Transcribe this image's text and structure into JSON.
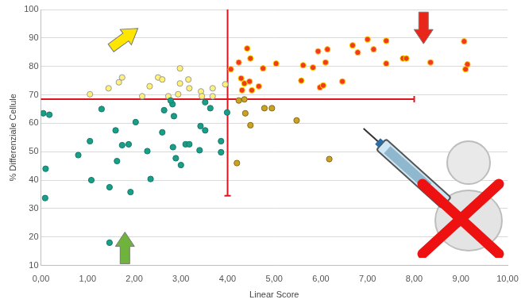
{
  "chart_data": {
    "type": "scatter",
    "x_label": "Linear Score",
    "y_label": "% Differenziale Cellule",
    "xlim": [
      0,
      10
    ],
    "xticks": [
      {
        "value": 0,
        "label": "0,00"
      },
      {
        "value": 1,
        "label": "1,00"
      },
      {
        "value": 2,
        "label": "2,00"
      },
      {
        "value": 3,
        "label": "3,00"
      },
      {
        "value": 4,
        "label": "4,00"
      },
      {
        "value": 5,
        "label": "5,00"
      },
      {
        "value": 6,
        "label": "6,00"
      },
      {
        "value": 7,
        "label": "7,00"
      },
      {
        "value": 8,
        "label": "8,00"
      },
      {
        "value": 9,
        "label": "9,00"
      },
      {
        "value": 10,
        "label": "10,00"
      }
    ],
    "ylim": [
      10,
      100
    ],
    "yticks": [
      10,
      20,
      30,
      40,
      50,
      60,
      70,
      80,
      90,
      100
    ],
    "grid": "y",
    "series": [
      {
        "color": "#1a9e87",
        "marker": "circle",
        "x": [
          0.05,
          0.18,
          0.1,
          0.09,
          0.8,
          1.05,
          1.08,
          1.3,
          1.47,
          1.6,
          1.47,
          1.63,
          1.74,
          1.88,
          1.92,
          2.03,
          2.28,
          2.35,
          2.6,
          2.64,
          2.82,
          2.85,
          2.83,
          2.89,
          3.0,
          3.1,
          3.18,
          3.4,
          3.42,
          3.52,
          3.52,
          3.63,
          3.86,
          3.86,
          3.99,
          2.78
        ],
        "values": [
          63.5,
          63,
          44,
          33.7,
          48.8,
          53.7,
          40,
          65,
          37.5,
          57.5,
          18,
          46.7,
          52.3,
          52.6,
          35.8,
          60.4,
          50.2,
          40.4,
          56.8,
          64.6,
          66.7,
          62.5,
          51.6,
          47.7,
          45.3,
          52.6,
          52.6,
          50.5,
          59,
          57.5,
          67.4,
          65.3,
          53.7,
          49.8,
          63.8,
          68
        ]
      },
      {
        "color": "#fff176",
        "marker": "circle",
        "x": [
          1.05,
          1.45,
          1.67,
          1.74,
          2.17,
          2.33,
          2.51,
          2.6,
          2.98,
          2.98,
          3.16,
          3.18,
          3.43,
          3.68,
          3.68,
          3.95,
          2.94,
          3.45,
          2.73
        ],
        "values": [
          70.2,
          72.3,
          74.4,
          76.1,
          69.5,
          73,
          76.1,
          75.4,
          79.3,
          74,
          75.4,
          72.3,
          71.2,
          72.3,
          69.5,
          73.7,
          70.2,
          69.5,
          69.5
        ]
      },
      {
        "color": "#f23a1e",
        "marker": "circle",
        "x": [
          4.07,
          4.24,
          4.29,
          4.36,
          4.42,
          4.49,
          4.47,
          4.52,
          4.31,
          4.67,
          4.76,
          5.04,
          5.58,
          5.62,
          5.83,
          5.94,
          5.98,
          6.05,
          6.1,
          6.14,
          6.46,
          6.68,
          6.79,
          7.0,
          7.13,
          7.4,
          7.4,
          7.76,
          7.83,
          8.35,
          9.07,
          9.14,
          9.1
        ],
        "values": [
          79,
          81.4,
          75.8,
          74,
          86.3,
          82.8,
          74.7,
          71.6,
          71.6,
          73,
          79.3,
          81,
          75,
          80.4,
          79.6,
          85.3,
          72.6,
          73.3,
          81.4,
          86,
          74.7,
          87.4,
          84.9,
          89.5,
          86,
          89,
          81,
          82.8,
          82.8,
          81.4,
          88.8,
          80.7,
          79
        ]
      },
      {
        "color": "#c9a227",
        "marker": "circle",
        "x": [
          4.36,
          4.38,
          4.49,
          4.79,
          4.95,
          5.48,
          4.2,
          6.18,
          4.24
        ],
        "values": [
          68.4,
          63.5,
          59.3,
          65.3,
          65.3,
          61,
          46,
          47.4,
          68
        ]
      }
    ],
    "vline": {
      "x": 4,
      "y_range": [
        34.5,
        100
      ],
      "color": "#e0141e"
    },
    "hline": {
      "y": 68.5,
      "x_range": [
        0,
        8
      ],
      "color": "#e0141e"
    }
  }
}
